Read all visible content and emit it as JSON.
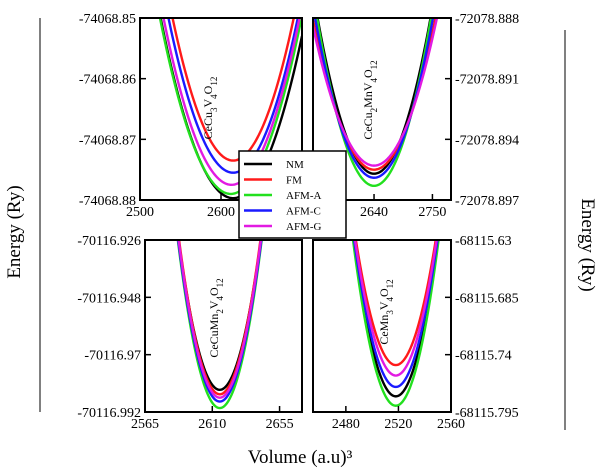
{
  "figure": {
    "xlabel": "Volume (a.u)³",
    "ylabel_left": "Energy (Ry)",
    "ylabel_right": "Energy (Ry)"
  },
  "legend": {
    "placement": "center",
    "entries": [
      {
        "name": "NM",
        "color": "#000000"
      },
      {
        "name": "FM",
        "color": "#ff1a1a"
      },
      {
        "name": "AFM-A",
        "color": "#22e01e"
      },
      {
        "name": "AFM-C",
        "color": "#1a1aff"
      },
      {
        "name": "AFM-G",
        "color": "#e21ae2"
      }
    ]
  },
  "chart_data": [
    {
      "type": "line",
      "panel": "top-left",
      "label": "CeCu3V4O12",
      "label_sub": [
        "Ce",
        "Cu",
        "3",
        "V",
        "4",
        "O",
        "12"
      ],
      "xlim": [
        2500,
        2700
      ],
      "ylim": [
        -74068.88,
        -74068.85
      ],
      "x_ticks": [
        "2500",
        "2600"
      ],
      "y_ticks": [
        "-74068.85",
        "-74068.86",
        "-74068.87",
        "-74068.88"
      ],
      "y_tick_values": [
        -74068.85,
        -74068.86,
        -74068.87,
        -74068.88
      ],
      "y_axis_side": "left",
      "series": [
        {
          "name": "NM",
          "x0": 2615,
          "ymin": -74068.8797,
          "k": 3.7e-06
        },
        {
          "name": "FM",
          "x0": 2615,
          "ymin": -74068.8735,
          "k": 4.2e-06
        },
        {
          "name": "AFM-A",
          "x0": 2612,
          "ymin": -74068.879,
          "k": 3.8e-06
        },
        {
          "name": "AFM-C",
          "x0": 2615,
          "ymin": -74068.8755,
          "k": 4e-06
        },
        {
          "name": "AFM-G",
          "x0": 2613,
          "ymin": -74068.8775,
          "k": 3.9e-06
        }
      ]
    },
    {
      "type": "line",
      "panel": "top-right",
      "label": "CeCu2MnV4O12",
      "label_sub": [
        "CeCu",
        "2",
        "MnV",
        "4",
        "O",
        "12"
      ],
      "xlim": [
        2525,
        2785
      ],
      "ylim": [
        -72078.897,
        -72078.888
      ],
      "x_ticks": [
        "2640",
        "2750"
      ],
      "y_ticks": [
        "-72078.888",
        "-72078.891",
        "-72078.894",
        "-72078.897"
      ],
      "y_tick_values": [
        -72078.888,
        -72078.891,
        -72078.894,
        -72078.897
      ],
      "y_axis_side": "right",
      "series": [
        {
          "name": "NM",
          "x0": 2640,
          "ymin": -72078.8957,
          "k": 6.8e-07
        },
        {
          "name": "FM",
          "x0": 2640,
          "ymin": -72078.8955,
          "k": 5.6e-07
        },
        {
          "name": "AFM-A",
          "x0": 2640,
          "ymin": -72078.8963,
          "k": 7.2e-07
        },
        {
          "name": "AFM-C",
          "x0": 2640,
          "ymin": -72078.8959,
          "k": 6.4e-07
        },
        {
          "name": "AFM-G",
          "x0": 2640,
          "ymin": -72078.8953,
          "k": 5.2e-07
        }
      ]
    },
    {
      "type": "line",
      "panel": "bottom-left",
      "label": "CeCuMn2V4O12",
      "label_sub": [
        "CeCuMn",
        "2",
        "V",
        "4",
        "O",
        "12"
      ],
      "xlim": [
        2565,
        2670
      ],
      "ylim": [
        -70116.992,
        -70116.926
      ],
      "x_ticks": [
        "2565",
        "2610",
        "2655"
      ],
      "y_ticks": [
        "-70116.926",
        "-70116.948",
        "-70116.97",
        "-70116.992"
      ],
      "y_tick_values": [
        -70116.926,
        -70116.948,
        -70116.97,
        -70116.992
      ],
      "y_axis_side": "left",
      "series": [
        {
          "name": "NM",
          "x0": 2615,
          "ymin": -70116.9835,
          "k": 7.6e-05
        },
        {
          "name": "FM",
          "x0": 2615,
          "ymin": -70116.9852,
          "k": 8e-05
        },
        {
          "name": "AFM-A",
          "x0": 2615,
          "ymin": -70116.9905,
          "k": 8.2e-05
        },
        {
          "name": "AFM-C",
          "x0": 2615,
          "ymin": -70116.988,
          "k": 8e-05
        },
        {
          "name": "AFM-G",
          "x0": 2615,
          "ymin": -70116.9865,
          "k": 8e-05
        }
      ]
    },
    {
      "type": "line",
      "panel": "bottom-right",
      "label": "CeMn3V4O12",
      "label_sub": [
        "CeMn",
        "3",
        "V",
        "4",
        "O",
        "12"
      ],
      "xlim": [
        2455,
        2560
      ],
      "ylim": [
        -68115.795,
        -68115.63
      ],
      "x_ticks": [
        "2480",
        "2520",
        "2560"
      ],
      "y_ticks": [
        "-68115.63",
        "-68115.685",
        "-68115.74",
        "-68115.795"
      ],
      "y_tick_values": [
        -68115.63,
        -68115.685,
        -68115.74,
        -68115.795
      ],
      "y_axis_side": "right",
      "series": [
        {
          "name": "NM",
          "x0": 2518,
          "ymin": -68115.78,
          "k": 0.000145
        },
        {
          "name": "FM",
          "x0": 2518,
          "ymin": -68115.75,
          "k": 0.00013
        },
        {
          "name": "AFM-A",
          "x0": 2518,
          "ymin": -68115.789,
          "k": 0.00015
        },
        {
          "name": "AFM-C",
          "x0": 2518,
          "ymin": -68115.771,
          "k": 0.00014
        },
        {
          "name": "AFM-G",
          "x0": 2518,
          "ymin": -68115.76,
          "k": 0.000135
        }
      ]
    }
  ]
}
